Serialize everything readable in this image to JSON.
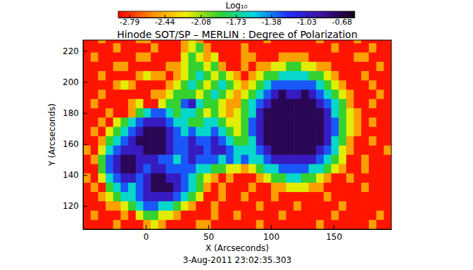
{
  "chart_data": {
    "type": "heatmap",
    "title": "Hinode SOT/SP – MERLIN : Degree of Polarization",
    "x_label": "X (Arcseconds)",
    "y_label": "Y (Arcseconds)",
    "annotations": [
      "3-Aug-2011 23:02:35.303"
    ],
    "xlim": [
      -50,
      196
    ],
    "ylim": [
      105,
      227
    ],
    "xticks": [
      0,
      50,
      100,
      150
    ],
    "yticks": [
      120,
      140,
      160,
      180,
      200,
      220
    ],
    "colorbar": {
      "label": "Log₁₀",
      "range": [
        -2.9,
        -0.55
      ],
      "ticks": [
        -2.79,
        -2.44,
        -2.08,
        -1.73,
        -1.38,
        -1.03,
        -0.68
      ]
    },
    "colors": [
      "#ff0000",
      "#ff8c00",
      "#f0f000",
      "#30d030",
      "#00d8e0",
      "#2030ff",
      "#4010a0",
      "#180018"
    ],
    "x": [
      -47,
      -41,
      -35,
      -29,
      -23,
      -17,
      -11,
      -5,
      1,
      7,
      13,
      19,
      25,
      31,
      37,
      43,
      49,
      55,
      61,
      67,
      73,
      79,
      85,
      91,
      97,
      103,
      109,
      115,
      121,
      127,
      133,
      139,
      145,
      151,
      157,
      163,
      169,
      175,
      181,
      187,
      193
    ],
    "y": [
      228,
      222,
      216,
      210,
      204,
      198,
      192,
      186,
      180,
      174,
      168,
      162,
      156,
      150,
      144,
      138,
      132,
      126,
      120,
      114,
      108
    ],
    "z": [
      [
        -2.85,
        -2.85,
        -2.5,
        -2.85,
        -2.85,
        -2.85,
        -2.85,
        -2.5,
        -2.5,
        -2.85,
        -2.85,
        -2.85,
        -2.85,
        -2.5,
        -2.2,
        -2.5,
        -2.85,
        -2.85,
        -2.85,
        -2.85,
        -2.85,
        -2.85,
        -2.85,
        -2.85,
        -2.5,
        -2.85,
        -2.85,
        -2.85,
        -2.85,
        -2.85,
        -2.85,
        -2.5,
        -2.85,
        -2.85,
        -2.85,
        -2.85,
        -2.5,
        -2.85,
        -2.85,
        -2.85,
        -2.85
      ],
      [
        -2.85,
        -2.85,
        -2.85,
        -2.85,
        -2.5,
        -2.85,
        -2.85,
        -2.85,
        -2.85,
        -2.5,
        -2.85,
        -2.85,
        -2.85,
        -2.5,
        -2.2,
        -1.9,
        -2.5,
        -2.85,
        -2.85,
        -2.85,
        -2.85,
        -2.5,
        -2.85,
        -2.85,
        -2.85,
        -2.85,
        -2.85,
        -2.85,
        -2.85,
        -2.85,
        -2.85,
        -2.85,
        -2.85,
        -2.5,
        -2.85,
        -2.85,
        -2.85,
        -2.85,
        -2.5,
        -2.85,
        -2.85
      ],
      [
        -2.85,
        -2.5,
        -2.85,
        -2.85,
        -2.85,
        -2.85,
        -2.85,
        -2.5,
        -2.5,
        -2.85,
        -2.85,
        -2.85,
        -2.85,
        -2.2,
        -1.9,
        -2.2,
        -2.5,
        -2.2,
        -2.85,
        -2.85,
        -2.85,
        -2.5,
        -2.5,
        -2.85,
        -2.85,
        -2.85,
        -2.5,
        -2.5,
        -2.5,
        -2.5,
        -2.85,
        -2.85,
        -2.85,
        -2.85,
        -2.85,
        -2.85,
        -2.5,
        -2.5,
        -2.85,
        -2.85,
        -2.85
      ],
      [
        -2.85,
        -2.85,
        -2.85,
        -2.85,
        -2.5,
        -2.5,
        -2.85,
        -2.85,
        -2.85,
        -2.85,
        -2.85,
        -2.5,
        -2.5,
        -2.2,
        -1.9,
        -1.9,
        -2.2,
        -1.9,
        -2.5,
        -2.85,
        -2.85,
        -2.5,
        -2.85,
        -2.5,
        -2.5,
        -2.2,
        -2.2,
        -1.9,
        -1.9,
        -2.2,
        -2.2,
        -2.5,
        -2.5,
        -2.85,
        -2.85,
        -2.85,
        -2.85,
        -2.85,
        -2.85,
        -2.5,
        -2.85
      ],
      [
        -2.85,
        -2.85,
        -2.5,
        -2.85,
        -2.85,
        -2.85,
        -2.85,
        -2.5,
        -2.2,
        -2.5,
        -2.5,
        -2.85,
        -2.5,
        -2.2,
        -1.9,
        -1.6,
        -1.9,
        -2.2,
        -1.9,
        -2.2,
        -2.5,
        -2.85,
        -2.5,
        -2.2,
        -1.9,
        -1.9,
        -1.6,
        -1.6,
        -1.6,
        -1.6,
        -1.9,
        -1.9,
        -2.2,
        -2.5,
        -2.85,
        -2.85,
        -2.85,
        -2.5,
        -2.85,
        -2.85,
        -2.85
      ],
      [
        -2.85,
        -2.85,
        -2.85,
        -2.85,
        -2.5,
        -2.2,
        -2.5,
        -2.85,
        -2.85,
        -2.85,
        -2.85,
        -2.5,
        -2.2,
        -1.9,
        -1.6,
        -1.9,
        -2.2,
        -1.9,
        -1.6,
        -1.9,
        -2.2,
        -2.5,
        -2.2,
        -1.9,
        -1.6,
        -1.3,
        -1.3,
        -1.3,
        -1.3,
        -1.3,
        -1.3,
        -1.6,
        -1.9,
        -2.2,
        -2.5,
        -2.85,
        -2.85,
        -2.85,
        -2.5,
        -2.85,
        -2.85
      ],
      [
        -2.85,
        -2.85,
        -2.5,
        -2.85,
        -2.85,
        -2.85,
        -2.85,
        -2.85,
        -2.85,
        -2.5,
        -2.5,
        -2.2,
        -1.9,
        -1.9,
        -1.9,
        -2.2,
        -1.9,
        -1.6,
        -1.9,
        -2.2,
        -2.5,
        -2.2,
        -1.9,
        -1.6,
        -1.3,
        -1,
        -0.7,
        -1,
        -1,
        -0.7,
        -1,
        -1.3,
        -1.6,
        -1.9,
        -2.2,
        -2.5,
        -2.85,
        -2.85,
        -2.85,
        -2.5,
        -2.85
      ],
      [
        -2.85,
        -2.5,
        -2.85,
        -2.85,
        -2.85,
        -2.85,
        -2.5,
        -2.2,
        -2.85,
        -2.85,
        -2.2,
        -1.9,
        -1.9,
        -1.3,
        -1,
        -1.6,
        -1.9,
        -1.9,
        -2.2,
        -2.5,
        -2.5,
        -1.9,
        -1.6,
        -1.3,
        -1,
        -0.7,
        -0.7,
        -0.7,
        -0.7,
        -0.7,
        -0.7,
        -1,
        -1.3,
        -1.6,
        -1.9,
        -2.5,
        -2.85,
        -2.85,
        -2.5,
        -2.85,
        -2.85
      ],
      [
        -2.85,
        -2.85,
        -2.85,
        -2.5,
        -2.85,
        -2.85,
        -2.5,
        -1.9,
        -1.6,
        -1.3,
        -1.3,
        -1.6,
        -1.9,
        -1.6,
        -1.6,
        -1.9,
        -2.2,
        -1.9,
        -2.2,
        -2.5,
        -2.2,
        -1.9,
        -1.6,
        -1,
        -0.7,
        -0.7,
        -0.7,
        -0.7,
        -0.7,
        -0.7,
        -0.7,
        -0.7,
        -1,
        -1.6,
        -1.9,
        -2.2,
        -2.5,
        -2.85,
        -2.85,
        -2.85,
        -2.85
      ],
      [
        -2.85,
        -2.85,
        -2.5,
        -2.85,
        -2.2,
        -1.9,
        -1.6,
        -1.3,
        -1,
        -1,
        -1,
        -1.3,
        -1.6,
        -1.6,
        -1.9,
        -1.9,
        -1.6,
        -1.6,
        -1.9,
        -2.2,
        -2.2,
        -1.9,
        -1.3,
        -1,
        -0.7,
        -0.7,
        -0.7,
        -0.7,
        -0.7,
        -0.7,
        -0.7,
        -0.7,
        -1,
        -1.3,
        -1.9,
        -2.2,
        -2.5,
        -2.85,
        -2.5,
        -2.85,
        -2.85
      ],
      [
        -2.85,
        -2.5,
        -2.85,
        -2.2,
        -1.9,
        -1.6,
        -1.3,
        -1,
        -0.7,
        -0.7,
        -0.7,
        -1,
        -1.3,
        -1.6,
        -1.3,
        -1.6,
        -1.6,
        -1.3,
        -1.6,
        -1.9,
        -2.2,
        -1.9,
        -1.3,
        -1,
        -0.7,
        -0.7,
        -0.7,
        -0.7,
        -0.7,
        -0.7,
        -0.7,
        -0.7,
        -1,
        -1.3,
        -1.9,
        -2.2,
        -2.5,
        -2.85,
        -2.85,
        -2.85,
        -2.85
      ],
      [
        -2.85,
        -2.85,
        -2.5,
        -1.9,
        -1.6,
        -1.3,
        -1,
        -0.7,
        -0.7,
        -0.7,
        -0.7,
        -1,
        -1.3,
        -1.3,
        -1,
        -1.3,
        -1.3,
        -1,
        -1.3,
        -1.6,
        -1.9,
        -1.9,
        -1.6,
        -1,
        -0.7,
        -0.7,
        -0.7,
        -0.7,
        -0.7,
        -0.7,
        -0.7,
        -0.7,
        -1,
        -1.6,
        -1.9,
        -2.5,
        -2.85,
        -2.85,
        -2.5,
        -2.85,
        -2.85
      ],
      [
        -2.5,
        -2.85,
        -2.2,
        -1.6,
        -1.3,
        -1,
        -1,
        -1,
        -0.7,
        -0.7,
        -0.7,
        -1,
        -1.3,
        -1.3,
        -1,
        -1,
        -1.3,
        -1,
        -1,
        -1.3,
        -1.6,
        -1.6,
        -1.6,
        -1.3,
        -1,
        -0.7,
        -0.7,
        -0.7,
        -0.7,
        -0.7,
        -0.7,
        -1,
        -1.3,
        -1.6,
        -2.2,
        -2.5,
        -2.85,
        -2.85,
        -2.85,
        -2.85,
        -2.5
      ],
      [
        -2.85,
        -2.5,
        -1.9,
        -1.3,
        -1,
        -0.7,
        -0.7,
        -1,
        -1,
        -1,
        -1.3,
        -1.3,
        -1.6,
        -1.3,
        -1,
        -1.3,
        -1.3,
        -1.3,
        -1.6,
        -1.3,
        -1.6,
        -1.3,
        -1.6,
        -1.6,
        -1.3,
        -1,
        -1,
        -1,
        -1,
        -1,
        -1,
        -1.3,
        -1.6,
        -1.9,
        -2.2,
        -2.85,
        -2.85,
        -2.5,
        -2.85,
        -2.85,
        -2.85
      ],
      [
        -2.85,
        -2.85,
        -1.9,
        -1.3,
        -1,
        -0.7,
        -0.7,
        -1,
        -1.3,
        -1,
        -1,
        -1.3,
        -1.3,
        -1.3,
        -1.3,
        -1.6,
        -1.6,
        -1.9,
        -1.9,
        -2.2,
        -2.2,
        -2.5,
        -2.2,
        -1.9,
        -1.6,
        -1.6,
        -1.3,
        -1.3,
        -1.3,
        -1.3,
        -1.6,
        -1.6,
        -1.9,
        -2.2,
        -2.5,
        -2.85,
        -2.85,
        -2.5,
        -2.85,
        -2.85,
        -2.85
      ],
      [
        -2.5,
        -2.85,
        -2.2,
        -1.6,
        -1.3,
        -1,
        -1,
        -1.3,
        -1,
        -0.7,
        -0.7,
        -1,
        -1,
        -1.3,
        -1.6,
        -1.9,
        -2.2,
        -2.5,
        -2.85,
        -2.5,
        -2.85,
        -2.85,
        -2.85,
        -2.5,
        -2.2,
        -1.9,
        -1.9,
        -1.6,
        -1.6,
        -1.9,
        -1.9,
        -2.2,
        -2.5,
        -2.85,
        -2.85,
        -2.5,
        -2.85,
        -2.85,
        -2.85,
        -2.85,
        -2.85
      ],
      [
        -2.85,
        -2.5,
        -2.85,
        -1.9,
        -1.6,
        -1.3,
        -1.6,
        -1.3,
        -1,
        -0.7,
        -0.7,
        -0.7,
        -1,
        -1.3,
        -1.6,
        -1.9,
        -2.5,
        -2.85,
        -2.5,
        -2.85,
        -2.85,
        -2.85,
        -2.5,
        -2.85,
        -2.85,
        -2.5,
        -2.5,
        -2.2,
        -2.2,
        -2.2,
        -2.5,
        -2.5,
        -2.85,
        -2.85,
        -2.85,
        -2.85,
        -2.85,
        -2.5,
        -2.85,
        -2.85,
        -2.85
      ],
      [
        -2.85,
        -2.85,
        -2.5,
        -2.2,
        -1.9,
        -1.6,
        -1.6,
        -1.3,
        -1,
        -1,
        -1,
        -1,
        -1.3,
        -1.6,
        -1.9,
        -2.2,
        -2.85,
        -2.85,
        -2.5,
        -2.85,
        -2.85,
        -2.5,
        -2.85,
        -2.85,
        -2.85,
        -2.5,
        -2.85,
        -2.85,
        -2.85,
        -2.85,
        -2.85,
        -2.85,
        -2.5,
        -2.85,
        -2.85,
        -2.85,
        -2.85,
        -2.85,
        -2.85,
        -2.85,
        -2.85
      ],
      [
        -2.85,
        -2.85,
        -2.85,
        -2.5,
        -2.5,
        -2.2,
        -1.9,
        -1.6,
        -1.3,
        -1.3,
        -1.6,
        -1.6,
        -1.9,
        -2.2,
        -2.5,
        -2.85,
        -2.85,
        -2.5,
        -2.85,
        -2.85,
        -2.85,
        -2.85,
        -2.85,
        -2.5,
        -2.85,
        -2.85,
        -2.85,
        -2.85,
        -2.5,
        -2.85,
        -2.85,
        -2.85,
        -2.85,
        -2.85,
        -2.5,
        -2.85,
        -2.85,
        -2.85,
        -2.85,
        -2.85,
        -2.85
      ],
      [
        -2.85,
        -2.5,
        -2.85,
        -2.85,
        -2.85,
        -2.5,
        -2.85,
        -2.2,
        -1.9,
        -1.9,
        -2.2,
        -2.2,
        -2.5,
        -2.85,
        -2.85,
        -2.85,
        -2.85,
        -2.5,
        -2.85,
        -2.85,
        -2.5,
        -2.85,
        -2.85,
        -2.85,
        -2.85,
        -2.85,
        -2.5,
        -2.85,
        -2.85,
        -2.85,
        -2.85,
        -2.85,
        -2.85,
        -2.5,
        -2.85,
        -2.85,
        -2.85,
        -2.85,
        -2.85,
        -2.5,
        -2.85
      ],
      [
        -2.85,
        -2.85,
        -2.85,
        -2.85,
        -2.5,
        -2.85,
        -2.85,
        -2.85,
        -2.5,
        -2.2,
        -2.5,
        -2.85,
        -2.85,
        -2.85,
        -2.85,
        -2.5,
        -2.5,
        -2.85,
        -2.85,
        -2.85,
        -2.85,
        -2.85,
        -2.85,
        -2.5,
        -2.85,
        -2.85,
        -2.85,
        -2.85,
        -2.85,
        -2.85,
        -2.85,
        -2.5,
        -2.85,
        -2.85,
        -2.85,
        -2.85,
        -2.85,
        -2.85,
        -2.5,
        -2.85,
        -2.85
      ]
    ]
  }
}
